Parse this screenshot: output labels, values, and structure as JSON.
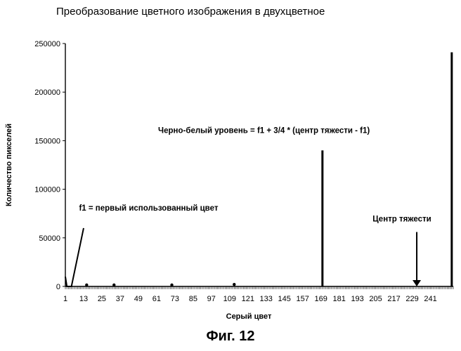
{
  "chart_data": {
    "type": "line",
    "title": "Преобразование цветного изображения в двухцветное",
    "xlabel": "Серый цвет",
    "ylabel": "Количество пикселей",
    "ylim": [
      0,
      250000
    ],
    "xlim": [
      1,
      256
    ],
    "y_ticks": [
      "0",
      "50000",
      "100000",
      "150000",
      "200000",
      "250000"
    ],
    "y_tick_values": [
      0,
      50000,
      100000,
      150000,
      200000,
      250000
    ],
    "x_ticks": [
      "1",
      "13",
      "25",
      "37",
      "49",
      "61",
      "73",
      "85",
      "97",
      "109",
      "121",
      "133",
      "145",
      "157",
      "169",
      "181",
      "193",
      "205",
      "217",
      "229",
      "241"
    ],
    "x_tick_values": [
      1,
      13,
      25,
      37,
      49,
      61,
      73,
      85,
      97,
      109,
      121,
      133,
      145,
      157,
      169,
      181,
      193,
      205,
      217,
      229,
      241
    ],
    "grid": false,
    "series": [
      {
        "points": [
          {
            "x": 1,
            "y": 10000
          },
          {
            "x": 2,
            "y": 0
          },
          {
            "x": 5,
            "y": 0
          },
          {
            "x": 13,
            "y": 60000
          }
        ]
      }
    ],
    "spikes": [
      {
        "x": 170,
        "y": 140000
      },
      {
        "x": 255,
        "y": 241000
      }
    ],
    "markers": [
      {
        "x": 15,
        "y": 1500
      },
      {
        "x": 33,
        "y": 1500
      },
      {
        "x": 71,
        "y": 1500
      },
      {
        "x": 112,
        "y": 2000
      }
    ],
    "arrow": {
      "x": 232,
      "y_start": 56000,
      "y_end": 0
    },
    "annotations": [
      {
        "text": "f1 = первый использованный цвет",
        "x": 10,
        "y": 78000
      },
      {
        "text": "Черно-белый уровень = f1 + 3/4 * (центр тяжести - f1)",
        "x": 62,
        "y": 158000
      },
      {
        "text": "Центр тяжести",
        "x": 203,
        "y": 67000
      }
    ],
    "figure_caption": "Фиг. 12"
  }
}
